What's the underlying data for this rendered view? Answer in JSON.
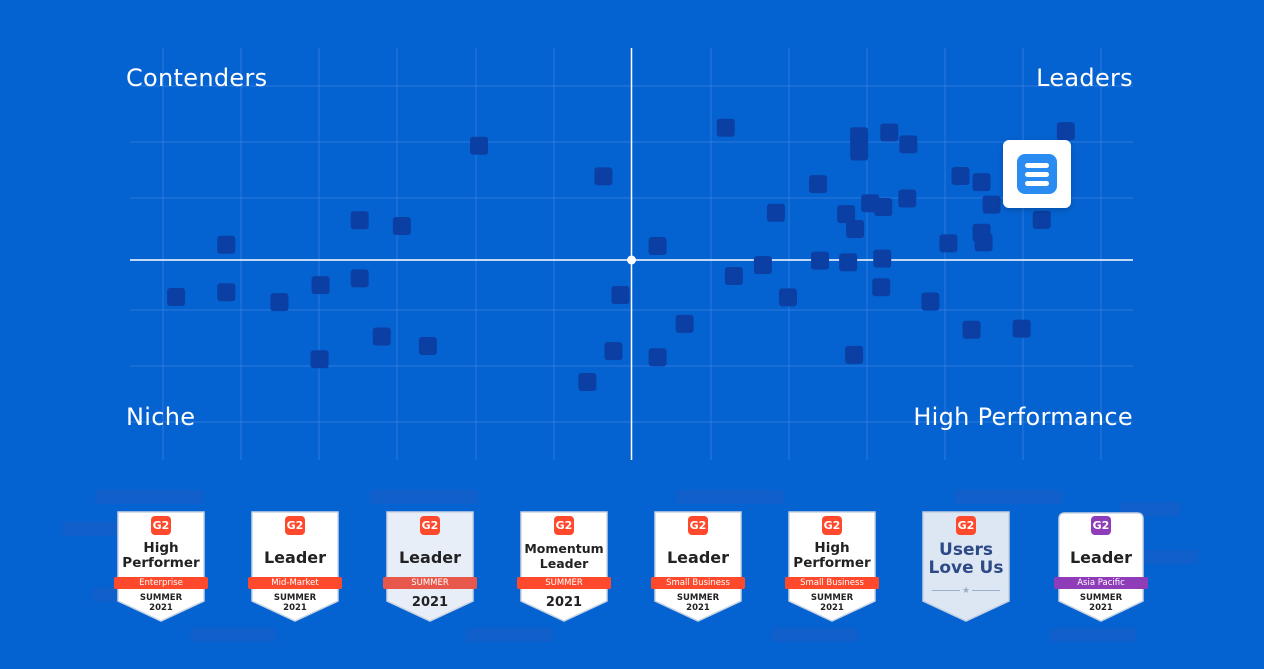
{
  "chart_data": {
    "type": "scatter",
    "quadrants": {
      "top_left": "Contenders",
      "top_right": "Leaders",
      "bottom_left": "Niche",
      "bottom_right": "High Performance"
    },
    "xlim": [
      0,
      100
    ],
    "ylim": [
      0,
      100
    ],
    "grid": true,
    "highlight": {
      "x": 90.4,
      "y": 75.2,
      "icon": "list-app-icon"
    },
    "points": [
      {
        "x": 4.6,
        "y": 39.1
      },
      {
        "x": 9.6,
        "y": 54.5
      },
      {
        "x": 9.6,
        "y": 40.5
      },
      {
        "x": 14.9,
        "y": 37.6
      },
      {
        "x": 19.0,
        "y": 42.6
      },
      {
        "x": 18.9,
        "y": 20.8
      },
      {
        "x": 22.9,
        "y": 61.7
      },
      {
        "x": 22.9,
        "y": 44.6
      },
      {
        "x": 25.1,
        "y": 27.5
      },
      {
        "x": 27.1,
        "y": 60.0
      },
      {
        "x": 29.7,
        "y": 24.7
      },
      {
        "x": 34.8,
        "y": 83.6
      },
      {
        "x": 45.6,
        "y": 14.1
      },
      {
        "x": 47.2,
        "y": 74.6
      },
      {
        "x": 48.2,
        "y": 23.2
      },
      {
        "x": 48.9,
        "y": 39.7
      },
      {
        "x": 52.6,
        "y": 21.4
      },
      {
        "x": 52.6,
        "y": 54.1
      },
      {
        "x": 55.3,
        "y": 31.2
      },
      {
        "x": 59.4,
        "y": 88.9
      },
      {
        "x": 60.2,
        "y": 45.3
      },
      {
        "x": 63.1,
        "y": 48.5
      },
      {
        "x": 64.4,
        "y": 63.9
      },
      {
        "x": 65.6,
        "y": 39.0
      },
      {
        "x": 68.6,
        "y": 72.3
      },
      {
        "x": 68.8,
        "y": 49.8
      },
      {
        "x": 71.4,
        "y": 63.5
      },
      {
        "x": 71.6,
        "y": 49.3
      },
      {
        "x": 72.3,
        "y": 59.1
      },
      {
        "x": 72.2,
        "y": 22.1
      },
      {
        "x": 72.7,
        "y": 86.4
      },
      {
        "x": 72.7,
        "y": 81.9
      },
      {
        "x": 73.8,
        "y": 66.7
      },
      {
        "x": 75.0,
        "y": 50.4
      },
      {
        "x": 74.9,
        "y": 42.0
      },
      {
        "x": 75.1,
        "y": 65.6
      },
      {
        "x": 75.7,
        "y": 87.5
      },
      {
        "x": 77.6,
        "y": 84.0
      },
      {
        "x": 77.5,
        "y": 68.1
      },
      {
        "x": 79.8,
        "y": 37.8
      },
      {
        "x": 81.6,
        "y": 54.9
      },
      {
        "x": 82.8,
        "y": 74.7
      },
      {
        "x": 83.9,
        "y": 29.5
      },
      {
        "x": 84.9,
        "y": 58.0
      },
      {
        "x": 85.1,
        "y": 55.2
      },
      {
        "x": 84.9,
        "y": 72.9
      },
      {
        "x": 85.9,
        "y": 66.3
      },
      {
        "x": 88.9,
        "y": 29.8
      },
      {
        "x": 90.9,
        "y": 61.8
      },
      {
        "x": 93.3,
        "y": 87.9
      }
    ]
  },
  "badges": [
    {
      "g2": "G2",
      "title": [
        "High",
        "Performer"
      ],
      "ribbon": "Enterprise",
      "ribbon_color": "#ff492c",
      "season": [
        "SUMMER",
        "2021"
      ],
      "style": "white"
    },
    {
      "g2": "G2",
      "title": [
        "Leader"
      ],
      "ribbon": "Mid-Market",
      "ribbon_color": "#ff492c",
      "season": [
        "SUMMER",
        "2021"
      ],
      "style": "white"
    },
    {
      "g2": "G2",
      "title": [
        "Leader"
      ],
      "ribbon": "SUMMER",
      "ribbon_color": "#e8574b",
      "season": [],
      "year": "2021",
      "style": "pale"
    },
    {
      "g2": "G2",
      "title": [
        "Momentum",
        "Leader"
      ],
      "ribbon": "SUMMER",
      "ribbon_color": "#ff492c",
      "season": [],
      "year": "2021",
      "style": "white"
    },
    {
      "g2": "G2",
      "title": [
        "Leader"
      ],
      "ribbon": "Small Business",
      "ribbon_color": "#ff492c",
      "season": [
        "SUMMER",
        "2021"
      ],
      "style": "white"
    },
    {
      "g2": "G2",
      "title": [
        "High",
        "Performer"
      ],
      "ribbon": "Small Business",
      "ribbon_color": "#ff492c",
      "season": [
        "SUMMER",
        "2021"
      ],
      "style": "white"
    },
    {
      "g2": "G2",
      "title": [
        "Users",
        "Love Us"
      ],
      "ribbon": "",
      "season": [],
      "style": "ulu"
    },
    {
      "g2": "G2",
      "title": [
        "Leader"
      ],
      "ribbon": "Asia Pacific",
      "ribbon_color": "#8e3cb8",
      "season": [
        "SUMMER",
        "2021"
      ],
      "style": "white",
      "g2_color": "#8e3cb8"
    }
  ]
}
